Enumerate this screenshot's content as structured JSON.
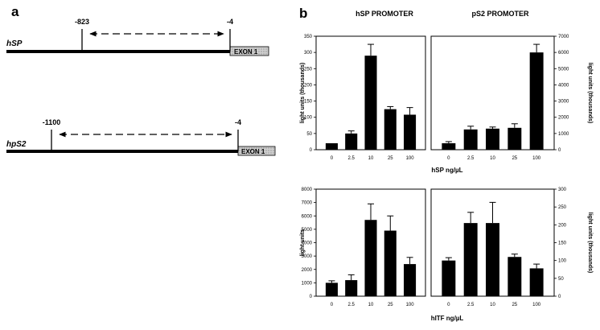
{
  "panel_a": {
    "letter": "a",
    "constructs": [
      {
        "gene": "hSP",
        "start_label": "-823",
        "end_label": "-4",
        "exon_label": "EXON 1"
      },
      {
        "gene": "hpS2",
        "start_label": "-1100",
        "end_label": "-4",
        "exon_label": "EXON 1"
      }
    ]
  },
  "panel_b": {
    "letter": "b",
    "column_titles": [
      "hSP PROMOTER",
      "pS2 PROMOTER"
    ],
    "top_xlabel": "hSP ng/µL",
    "bottom_xlabel": "hITF ng/µL"
  },
  "chart_data": [
    {
      "type": "bar",
      "title": "hSP PROMOTER",
      "categories": [
        "0",
        "2.5",
        "10",
        "25",
        "100"
      ],
      "values": [
        20,
        50,
        290,
        125,
        108
      ],
      "errors": [
        0,
        8,
        35,
        8,
        22
      ],
      "ylabel": "light units (thousands)",
      "ylim": [
        0,
        350
      ],
      "yticks": [
        "0",
        "50",
        "100",
        "150",
        "200",
        "250",
        "300",
        "350"
      ]
    },
    {
      "type": "bar",
      "title": "pS2 PROMOTER",
      "categories": [
        "0",
        "2.5",
        "10",
        "25",
        "100"
      ],
      "values": [
        400,
        1250,
        1300,
        1350,
        6000
      ],
      "errors": [
        100,
        200,
        100,
        250,
        500
      ],
      "ylabel": "light units (thousands)",
      "ylim": [
        0,
        7000
      ],
      "yticks": [
        "0",
        "1000",
        "2000",
        "3000",
        "4000",
        "5000",
        "6000",
        "7000"
      ]
    },
    {
      "type": "bar",
      "categories": [
        "0",
        "2.5",
        "10",
        "25",
        "100"
      ],
      "values": [
        1000,
        1200,
        5700,
        4900,
        2400
      ],
      "errors": [
        150,
        400,
        1200,
        1100,
        500
      ],
      "ylabel": "light units",
      "ylim": [
        0,
        8000
      ],
      "yticks": [
        "0",
        "1000",
        "2000",
        "3000",
        "4000",
        "5000",
        "6000",
        "7000",
        "8000"
      ]
    },
    {
      "type": "bar",
      "categories": [
        "0",
        "2.5",
        "10",
        "25",
        "100"
      ],
      "values": [
        100,
        205,
        205,
        110,
        78
      ],
      "errors": [
        8,
        30,
        58,
        8,
        12
      ],
      "ylabel": "light units (thousands)",
      "ylim": [
        0,
        300
      ],
      "yticks": [
        "0",
        "50",
        "100",
        "150",
        "200",
        "250",
        "300"
      ]
    }
  ]
}
